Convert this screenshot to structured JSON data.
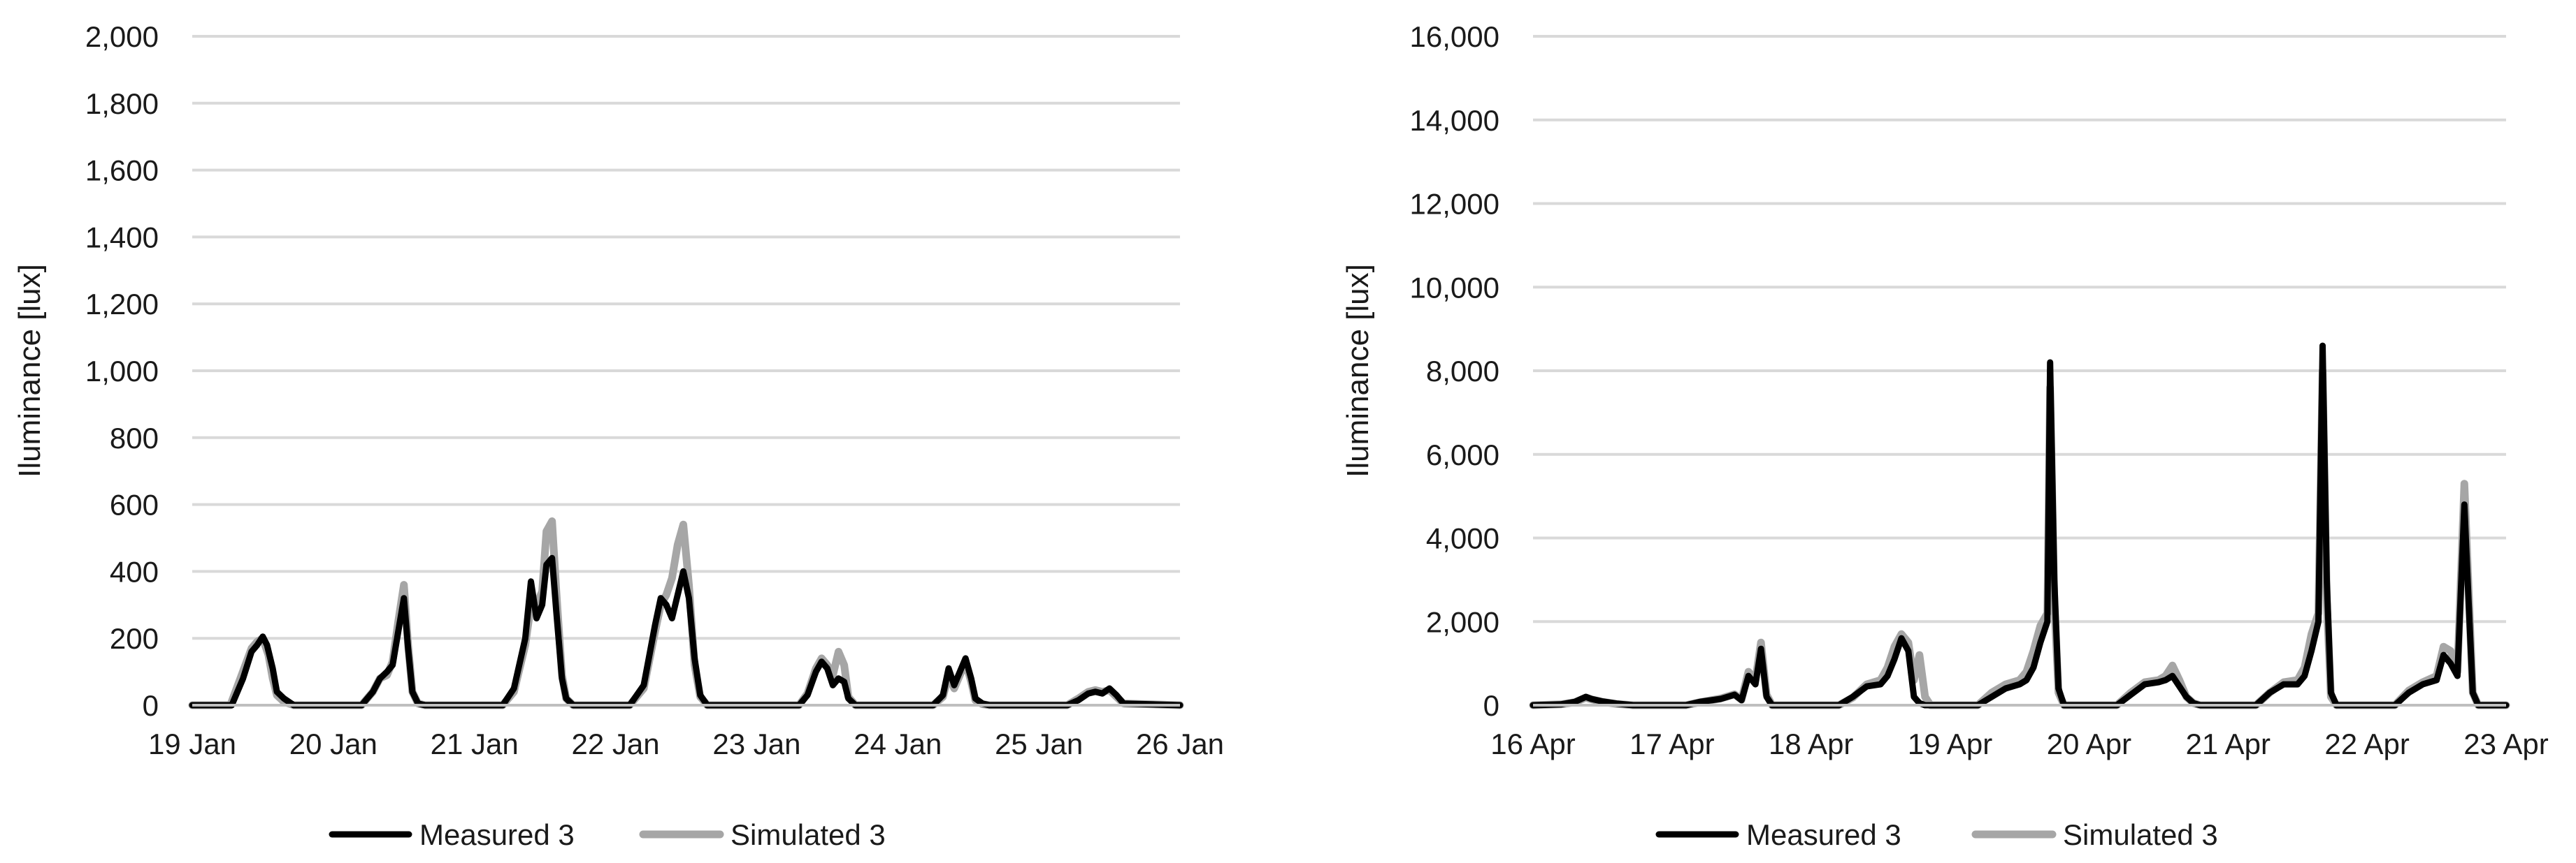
{
  "chart_data": [
    {
      "type": "line",
      "ylabel": "Iluminance [lux]",
      "xlabel": "",
      "title": "",
      "ylim": [
        0,
        2000
      ],
      "yticks": [
        0,
        200,
        400,
        600,
        800,
        1000,
        1200,
        1400,
        1600,
        1800,
        2000
      ],
      "ytick_labels": [
        "0",
        "200",
        "400",
        "600",
        "800",
        "1,000",
        "1,200",
        "1,400",
        "1,600",
        "1,800",
        "2,000"
      ],
      "xlim": [
        0,
        7
      ],
      "xticks": [
        0,
        1,
        2,
        3,
        4,
        5,
        6,
        7
      ],
      "xtick_labels": [
        "19 Jan",
        "20 Jan",
        "21 Jan",
        "22 Jan",
        "23 Jan",
        "24 Jan",
        "25 Jan",
        "26 Jan"
      ],
      "grid": true,
      "legend": "bottom-center",
      "colors": {
        "Measured 3": "#000000",
        "Simulated 3": "#a6a6a6"
      },
      "series": [
        {
          "name": "Measured 3",
          "x": [
            0,
            0.28,
            0.36,
            0.42,
            0.46,
            0.5,
            0.53,
            0.57,
            0.6,
            0.65,
            0.72,
            1.2,
            1.28,
            1.33,
            1.38,
            1.42,
            1.46,
            1.5,
            1.53,
            1.56,
            1.6,
            1.65,
            2.2,
            2.28,
            2.36,
            2.4,
            2.44,
            2.48,
            2.51,
            2.55,
            2.58,
            2.62,
            2.65,
            2.7,
            3.1,
            3.2,
            3.28,
            3.32,
            3.36,
            3.4,
            3.44,
            3.48,
            3.52,
            3.56,
            3.6,
            3.65,
            4.3,
            4.36,
            4.42,
            4.46,
            4.5,
            4.54,
            4.58,
            4.62,
            4.65,
            4.7,
            5.25,
            5.32,
            5.36,
            5.4,
            5.44,
            5.48,
            5.52,
            5.55,
            5.6,
            5.65,
            6.2,
            6.28,
            6.35,
            6.4,
            6.45,
            6.5,
            6.55,
            6.6,
            7
          ],
          "y": [
            0,
            0,
            80,
            160,
            180,
            205,
            180,
            110,
            40,
            20,
            0,
            0,
            40,
            80,
            100,
            120,
            220,
            320,
            170,
            40,
            5,
            0,
            0,
            50,
            200,
            370,
            260,
            300,
            420,
            440,
            280,
            80,
            20,
            0,
            0,
            60,
            240,
            320,
            300,
            260,
            330,
            400,
            320,
            140,
            30,
            0,
            0,
            30,
            100,
            130,
            110,
            60,
            80,
            70,
            20,
            0,
            0,
            30,
            110,
            60,
            100,
            140,
            80,
            20,
            5,
            0,
            0,
            15,
            35,
            40,
            35,
            50,
            30,
            5,
            0
          ]
        },
        {
          "name": "Simulated 3",
          "x": [
            0,
            0.27,
            0.35,
            0.42,
            0.46,
            0.5,
            0.54,
            0.57,
            0.6,
            0.65,
            0.72,
            1.2,
            1.28,
            1.33,
            1.38,
            1.42,
            1.46,
            1.5,
            1.53,
            1.56,
            1.6,
            1.65,
            2.2,
            2.28,
            2.36,
            2.4,
            2.44,
            2.48,
            2.51,
            2.55,
            2.58,
            2.62,
            2.65,
            2.7,
            3.1,
            3.2,
            3.28,
            3.32,
            3.36,
            3.4,
            3.44,
            3.48,
            3.52,
            3.56,
            3.6,
            3.65,
            4.3,
            4.36,
            4.42,
            4.46,
            4.5,
            4.54,
            4.58,
            4.62,
            4.65,
            4.7,
            5.25,
            5.32,
            5.36,
            5.4,
            5.44,
            5.48,
            5.52,
            5.55,
            5.6,
            5.65,
            6.2,
            6.28,
            6.35,
            6.4,
            6.45,
            6.5,
            6.55,
            6.6,
            7
          ],
          "y": [
            0,
            0,
            90,
            170,
            190,
            200,
            150,
            80,
            30,
            10,
            0,
            0,
            40,
            80,
            90,
            130,
            250,
            360,
            180,
            40,
            5,
            0,
            0,
            40,
            180,
            300,
            300,
            340,
            520,
            550,
            340,
            90,
            20,
            0,
            0,
            50,
            220,
            300,
            330,
            380,
            480,
            540,
            360,
            120,
            25,
            0,
            0,
            35,
            110,
            140,
            120,
            90,
            160,
            120,
            25,
            0,
            0,
            25,
            90,
            50,
            90,
            130,
            70,
            15,
            3,
            0,
            0,
            20,
            40,
            45,
            40,
            45,
            25,
            5,
            0
          ]
        }
      ]
    },
    {
      "type": "line",
      "ylabel": "Iluminance [lux]",
      "xlabel": "",
      "title": "",
      "ylim": [
        0,
        16000
      ],
      "yticks": [
        0,
        2000,
        4000,
        6000,
        8000,
        10000,
        12000,
        14000,
        16000
      ],
      "ytick_labels": [
        "0",
        "2,000",
        "4,000",
        "6,000",
        "8,000",
        "10,000",
        "12,000",
        "14,000",
        "16,000"
      ],
      "xlim": [
        0,
        7
      ],
      "xticks": [
        0,
        1,
        2,
        3,
        4,
        5,
        6,
        7
      ],
      "xtick_labels": [
        "16 Apr",
        "17 Apr",
        "18 Apr",
        "19 Apr",
        "20 Apr",
        "21 Apr",
        "22 Apr",
        "23 Apr"
      ],
      "grid": true,
      "legend": "bottom-center",
      "colors": {
        "Measured 3": "#000000",
        "Simulated 3": "#a6a6a6"
      },
      "series": [
        {
          "name": "Measured 3",
          "x": [
            0,
            0.2,
            0.3,
            0.38,
            0.42,
            0.5,
            0.6,
            0.72,
            1.1,
            1.2,
            1.35,
            1.45,
            1.5,
            1.55,
            1.6,
            1.64,
            1.68,
            1.72,
            2.2,
            2.3,
            2.4,
            2.5,
            2.55,
            2.6,
            2.65,
            2.7,
            2.74,
            2.78,
            2.82,
            3.2,
            3.3,
            3.4,
            3.5,
            3.55,
            3.6,
            3.65,
            3.7,
            3.72,
            3.75,
            3.78,
            3.82,
            4.2,
            4.3,
            4.4,
            4.5,
            4.55,
            4.6,
            4.65,
            4.7,
            4.75,
            4.8,
            5.2,
            5.3,
            5.4,
            5.5,
            5.55,
            5.6,
            5.65,
            5.68,
            5.71,
            5.74,
            5.78,
            6.2,
            6.3,
            6.4,
            6.5,
            6.55,
            6.6,
            6.65,
            6.7,
            6.73,
            6.76,
            6.8,
            7
          ],
          "y": [
            0,
            20,
            80,
            200,
            150,
            90,
            40,
            0,
            0,
            80,
            150,
            250,
            120,
            700,
            500,
            1350,
            200,
            0,
            0,
            200,
            450,
            500,
            700,
            1100,
            1600,
            1300,
            200,
            50,
            0,
            0,
            200,
            400,
            500,
            600,
            900,
            1500,
            2000,
            8200,
            3000,
            400,
            0,
            0,
            250,
            500,
            550,
            600,
            700,
            450,
            200,
            50,
            0,
            0,
            300,
            500,
            500,
            700,
            1300,
            2000,
            8600,
            3000,
            300,
            0,
            0,
            300,
            500,
            600,
            1200,
            1000,
            700,
            4800,
            2500,
            300,
            0,
            0
          ]
        },
        {
          "name": "Simulated 3",
          "x": [
            0,
            0.2,
            0.3,
            0.38,
            0.42,
            0.5,
            0.6,
            0.72,
            1.1,
            1.2,
            1.35,
            1.45,
            1.5,
            1.55,
            1.6,
            1.64,
            1.68,
            1.72,
            2.2,
            2.3,
            2.4,
            2.5,
            2.55,
            2.6,
            2.65,
            2.7,
            2.74,
            2.78,
            2.82,
            2.86,
            3.2,
            3.3,
            3.4,
            3.5,
            3.55,
            3.6,
            3.65,
            3.7,
            3.72,
            3.75,
            3.78,
            3.82,
            4.2,
            4.3,
            4.4,
            4.5,
            4.55,
            4.6,
            4.65,
            4.7,
            4.75,
            4.8,
            5.2,
            5.3,
            5.4,
            5.5,
            5.55,
            5.6,
            5.65,
            5.68,
            5.71,
            5.74,
            5.78,
            6.2,
            6.3,
            6.4,
            6.5,
            6.55,
            6.6,
            6.65,
            6.7,
            6.73,
            6.76,
            6.8,
            7
          ],
          "y": [
            0,
            20,
            70,
            180,
            140,
            80,
            30,
            0,
            0,
            70,
            160,
            260,
            130,
            800,
            600,
            1500,
            250,
            0,
            0,
            180,
            500,
            600,
            900,
            1400,
            1700,
            1500,
            600,
            1200,
            200,
            0,
            0,
            300,
            500,
            600,
            800,
            1300,
            1900,
            2200,
            7600,
            2500,
            300,
            0,
            0,
            300,
            550,
            600,
            700,
            950,
            600,
            200,
            50,
            0,
            0,
            300,
            550,
            600,
            900,
            1700,
            2200,
            8000,
            2500,
            200,
            0,
            0,
            350,
            550,
            700,
            1400,
            1300,
            800,
            5300,
            2800,
            300,
            0,
            0
          ]
        }
      ]
    }
  ]
}
